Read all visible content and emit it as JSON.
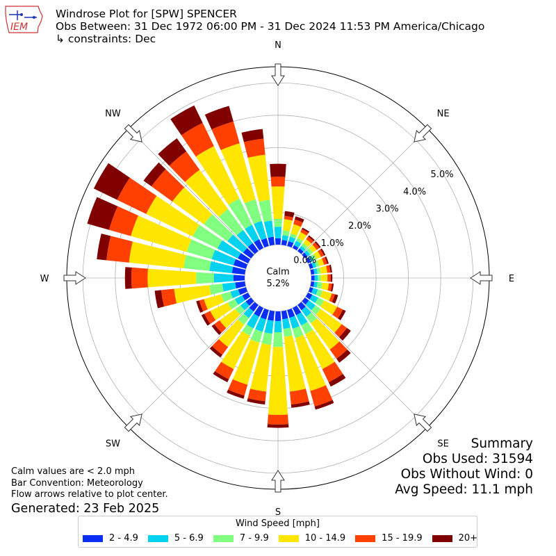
{
  "header": {
    "line1": "Windrose Plot for [SPW] SPENCER",
    "line2": "Obs Between: 31 Dec 1972 06:00 PM - 31 Dec 2024 11:53 PM America/Chicago",
    "line3": "↳ constraints: Dec"
  },
  "logo": {
    "text": "IEM",
    "icon": "iowa-state-outline-icon"
  },
  "summary": {
    "title": "Summary",
    "obs_used": "Obs Used: 31594",
    "obs_without_wind": "Obs Without Wind: 0",
    "avg_speed": "Avg Speed: 11.1 mph"
  },
  "notes": {
    "calm_note": "Calm values are < 2.0 mph",
    "bar_convention": "Bar Convention: Meteorology",
    "flow_arrows": "Flow arrows relative to plot center.",
    "generated": "Generated: 23 Feb 2025"
  },
  "chart_data": {
    "type": "windrose",
    "calm_label": "Calm",
    "calm_value": "5.2%",
    "compass_labels": [
      "N",
      "NE",
      "E",
      "SE",
      "S",
      "SW",
      "W",
      "NW"
    ],
    "radial_ticks": [
      "0.0%",
      "1.0%",
      "2.0%",
      "3.0%",
      "4.0%",
      "5.0%"
    ],
    "radial_max": 5.5,
    "legend_title": "Wind Speed [mph]",
    "bins": [
      {
        "label": "2 - 4.9",
        "color": "#0a2ef7"
      },
      {
        "label": "5 - 6.9",
        "color": "#00d2f0"
      },
      {
        "label": "7 - 9.9",
        "color": "#80ff80"
      },
      {
        "label": "10 - 14.9",
        "color": "#ffe600"
      },
      {
        "label": "15 - 19.9",
        "color": "#ff4000"
      },
      {
        "label": "20+",
        "color": "#800000"
      }
    ],
    "directions_deg": [
      0,
      10,
      20,
      30,
      40,
      50,
      60,
      70,
      80,
      90,
      100,
      110,
      120,
      130,
      140,
      150,
      160,
      170,
      180,
      190,
      200,
      210,
      220,
      230,
      240,
      250,
      260,
      270,
      280,
      290,
      300,
      310,
      320,
      330,
      340,
      350
    ],
    "cumulative_percent": [
      [
        0.2,
        0.55,
        0.8,
        1.8,
        2.1,
        2.5
      ],
      [
        0.15,
        0.3,
        0.45,
        0.8,
        0.9,
        1.05
      ],
      [
        0.15,
        0.3,
        0.4,
        0.7,
        0.85,
        0.95
      ],
      [
        0.1,
        0.25,
        0.35,
        0.55,
        0.65,
        0.7
      ],
      [
        0.1,
        0.2,
        0.3,
        0.45,
        0.55,
        0.6
      ],
      [
        0.1,
        0.2,
        0.3,
        0.45,
        0.55,
        0.6
      ],
      [
        0.1,
        0.2,
        0.3,
        0.45,
        0.55,
        0.6
      ],
      [
        0.1,
        0.2,
        0.3,
        0.45,
        0.55,
        0.6
      ],
      [
        0.1,
        0.2,
        0.3,
        0.5,
        0.6,
        0.65
      ],
      [
        0.1,
        0.2,
        0.3,
        0.5,
        0.6,
        0.65
      ],
      [
        0.1,
        0.2,
        0.35,
        0.55,
        0.65,
        0.7
      ],
      [
        0.1,
        0.25,
        0.4,
        0.7,
        0.8,
        0.9
      ],
      [
        0.15,
        0.35,
        0.55,
        1.0,
        1.2,
        1.3
      ],
      [
        0.15,
        0.4,
        0.6,
        1.4,
        1.6,
        1.75
      ],
      [
        0.2,
        0.45,
        0.7,
        1.7,
        2.05,
        2.2
      ],
      [
        0.25,
        0.6,
        0.9,
        2.1,
        2.55,
        2.7
      ],
      [
        0.25,
        0.6,
        0.9,
        2.6,
        3.1,
        3.2
      ],
      [
        0.25,
        0.55,
        0.8,
        2.5,
        2.9,
        3.0
      ],
      [
        0.3,
        0.65,
        1.1,
        3.2,
        3.5,
        3.6
      ],
      [
        0.3,
        0.7,
        1.05,
        2.5,
        2.8,
        2.9
      ],
      [
        0.3,
        0.7,
        1.05,
        2.4,
        2.75,
        2.85
      ],
      [
        0.3,
        0.7,
        0.95,
        2.1,
        2.45,
        2.55
      ],
      [
        0.25,
        0.5,
        0.75,
        1.6,
        1.9,
        2.0
      ],
      [
        0.2,
        0.4,
        0.6,
        1.2,
        1.4,
        1.5
      ],
      [
        0.2,
        0.45,
        0.7,
        1.3,
        1.5,
        1.6
      ],
      [
        0.25,
        0.5,
        0.8,
        1.35,
        1.5,
        1.6
      ],
      [
        0.3,
        0.7,
        1.1,
        2.2,
        2.6,
        2.8
      ],
      [
        0.35,
        0.95,
        1.5,
        3.0,
        3.5,
        3.7
      ],
      [
        0.4,
        1.1,
        1.9,
        3.6,
        4.3,
        4.6
      ],
      [
        0.4,
        1.1,
        1.9,
        3.7,
        4.4,
        5.1
      ],
      [
        0.35,
        1.05,
        1.9,
        3.5,
        4.5,
        5.3
      ],
      [
        0.3,
        0.9,
        1.8,
        3.0,
        3.8,
        4.1
      ],
      [
        0.3,
        0.8,
        1.6,
        3.1,
        3.8,
        4.3
      ],
      [
        0.3,
        0.8,
        1.7,
        3.5,
        4.3,
        4.9
      ],
      [
        0.25,
        0.8,
        1.5,
        3.3,
        4.0,
        4.5
      ],
      [
        0.25,
        0.75,
        1.4,
        2.8,
        3.3,
        3.6
      ]
    ]
  }
}
